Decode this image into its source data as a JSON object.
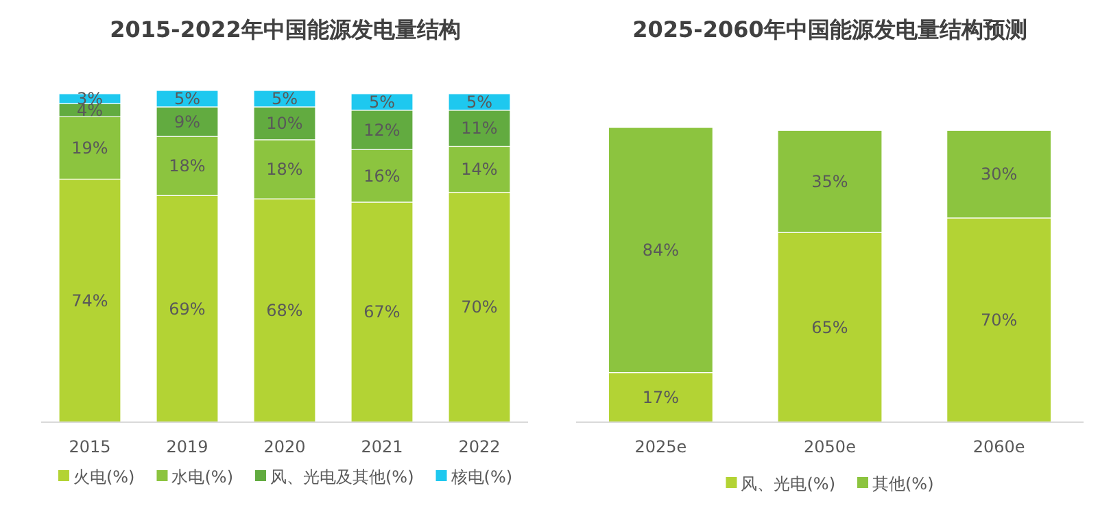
{
  "chart_data": [
    {
      "type": "bar",
      "stacked": true,
      "title": "2015-2022年中国能源发电量结构",
      "categories": [
        "2015",
        "2019",
        "2020",
        "2021",
        "2022"
      ],
      "legend": "bottom",
      "series": [
        {
          "name": "火电(%)",
          "color": "#b3d334",
          "values": [
            74,
            69,
            68,
            67,
            70
          ],
          "value_labels": [
            "74%",
            "69%",
            "68%",
            "67%",
            "70%"
          ]
        },
        {
          "name": "水电(%)",
          "color": "#8cc43f",
          "values": [
            19,
            18,
            18,
            16,
            14
          ],
          "value_labels": [
            "19%",
            "18%",
            "18%",
            "16%",
            "14%"
          ]
        },
        {
          "name": "风、光电及其他(%)",
          "color": "#62ab40",
          "values": [
            4,
            9,
            10,
            12,
            11
          ],
          "value_labels": [
            "4%",
            "9%",
            "10%",
            "12%",
            "11%"
          ]
        },
        {
          "name": "核电(%)",
          "color": "#1ec8ef",
          "values": [
            3,
            5,
            5,
            5,
            5
          ],
          "value_labels": [
            "3%",
            "5%",
            "5%",
            "5%",
            "5%"
          ]
        }
      ]
    },
    {
      "type": "bar",
      "stacked": true,
      "title": "2025-2060年中国能源发电量结构预测",
      "categories": [
        "2025e",
        "2050e",
        "2060e"
      ],
      "legend": "bottom",
      "series": [
        {
          "name": "风、光电(%)",
          "color": "#b3d334",
          "values": [
            17,
            65,
            70
          ],
          "value_labels": [
            "17%",
            "65%",
            "70%"
          ]
        },
        {
          "name": "其他(%)",
          "color": "#8cc43f",
          "values": [
            84,
            35,
            30
          ],
          "value_labels": [
            "84%",
            "35%",
            "30%"
          ]
        }
      ]
    }
  ]
}
